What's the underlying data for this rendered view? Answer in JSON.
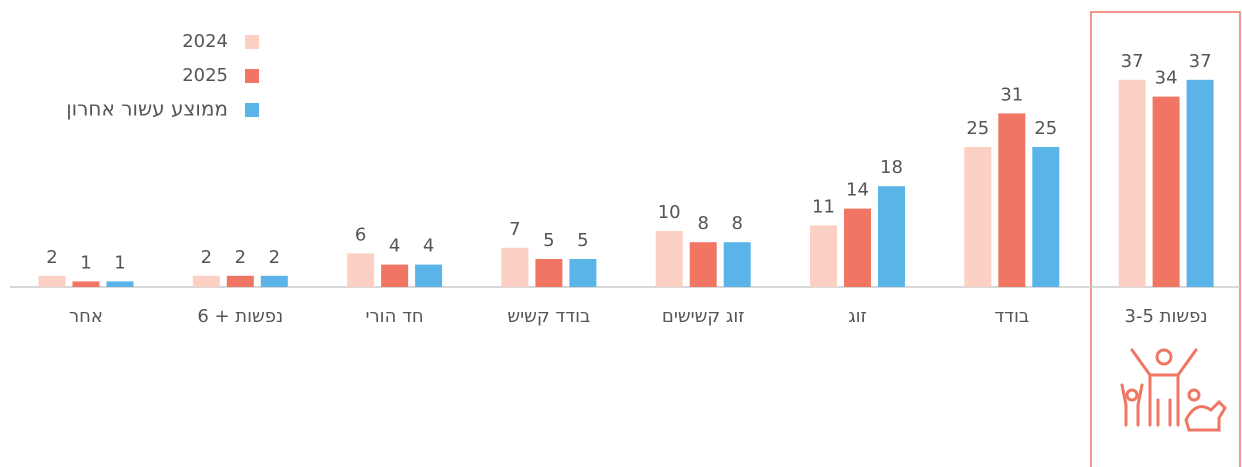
{
  "chart_data": {
    "type": "bar",
    "categories": [
      "אחר",
      "נפשות + 6",
      "חד הורי",
      "בודד קשיש",
      "זוג קשישים",
      "זוג",
      "בודד",
      "נפשות 3-5"
    ],
    "series": [
      {
        "name": "2024",
        "color": "#fcd0c3",
        "values": [
          2,
          2,
          6,
          7,
          10,
          11,
          25,
          37
        ]
      },
      {
        "name": "2025",
        "color": "#f07563",
        "values": [
          1,
          2,
          4,
          5,
          8,
          14,
          31,
          34
        ]
      },
      {
        "name": "ממוצע עשור אחרון",
        "color": "#5ab4e8",
        "values": [
          1,
          2,
          4,
          5,
          8,
          18,
          25,
          37
        ]
      }
    ],
    "legend": "top-left"
  }
}
